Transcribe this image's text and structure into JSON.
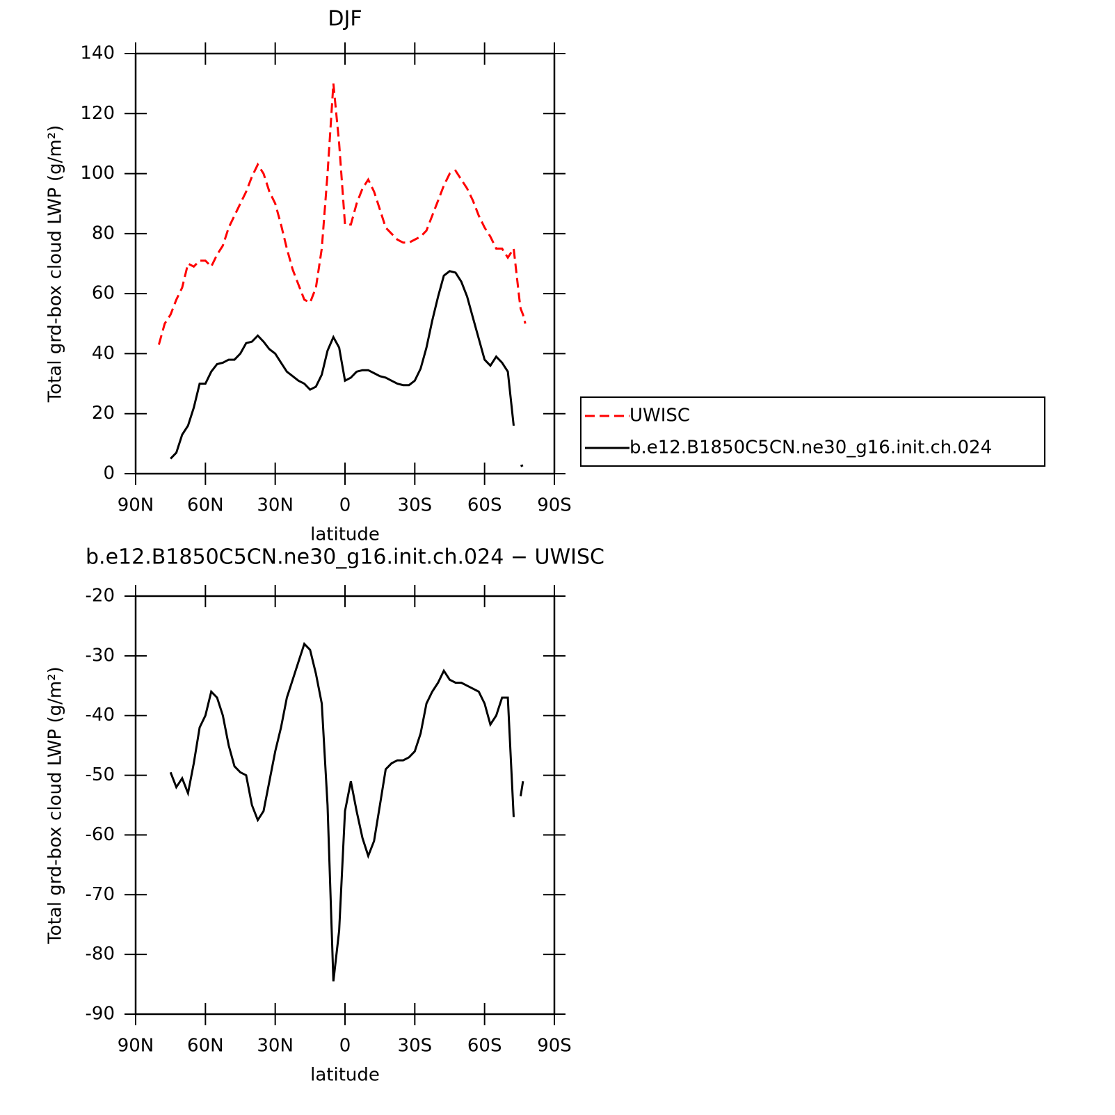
{
  "chart_data": [
    {
      "type": "line",
      "title": "DJF",
      "x_label": "latitude",
      "y_label": "Total grd-box cloud LWP (g/m²)",
      "x": [
        80,
        77.5,
        75,
        72.5,
        70,
        67.5,
        65,
        62.5,
        60,
        57.5,
        55,
        52.5,
        50,
        47.5,
        45,
        42.5,
        40,
        37.5,
        35,
        32.5,
        30,
        27.5,
        25,
        22.5,
        20,
        17.5,
        15,
        12.5,
        10,
        7.5,
        5,
        2.5,
        0,
        -2.5,
        -5,
        -7.5,
        -10,
        -12.5,
        -15,
        -17.5,
        -20,
        -22.5,
        -25,
        -27.5,
        -30,
        -32.5,
        -35,
        -37.5,
        -40,
        -42.5,
        -45,
        -47.5,
        -50,
        -52.5,
        -55,
        -57.5,
        -60,
        -62.5,
        -65,
        -67.5,
        -70,
        -72.5,
        -75,
        -75.5,
        -76.5,
        -77.5
      ],
      "series": [
        {
          "name": "UWISC",
          "color": "#ff0000",
          "dash": true,
          "values": [
            43,
            50,
            53,
            58,
            62,
            70,
            69,
            71,
            71,
            69,
            73,
            76,
            82,
            86,
            90,
            94,
            99,
            103,
            100,
            94,
            90,
            83,
            75,
            68,
            63,
            58,
            57,
            62,
            75,
            100,
            130,
            110,
            83,
            83,
            90,
            95,
            98,
            94,
            88,
            82,
            80,
            78,
            77,
            77,
            78,
            79,
            81,
            86,
            91,
            96,
            100,
            101,
            98,
            95,
            91,
            86,
            82,
            79,
            75,
            75,
            72,
            75,
            58,
            55,
            53,
            50
          ]
        },
        {
          "name": "b.e12.B1850C5CN.ne30_g16.init.ch.024",
          "color": "#000000",
          "dash": false,
          "values": [
            null,
            null,
            5,
            7,
            13,
            16,
            22,
            30,
            30,
            34,
            36.5,
            37,
            38,
            38,
            40,
            43.5,
            44,
            46,
            44,
            41.5,
            40,
            37,
            34,
            32.5,
            31,
            30,
            28,
            29,
            33,
            41,
            45.5,
            42,
            31,
            32,
            34,
            34.5,
            34.5,
            33.5,
            32.5,
            32,
            31,
            30,
            29.5,
            29.5,
            31,
            35,
            42,
            51,
            59,
            66,
            67.5,
            67,
            64,
            59,
            52,
            45,
            38,
            36,
            39,
            37,
            34,
            16,
            null,
            2.5,
            2.8,
            null
          ]
        }
      ],
      "xlim": [
        90,
        -90
      ],
      "xticks": [
        {
          "value": 90,
          "label": "90N"
        },
        {
          "value": 60,
          "label": "60N"
        },
        {
          "value": 30,
          "label": "30N"
        },
        0,
        {
          "value": -30,
          "label": "30S"
        },
        {
          "value": -60,
          "label": "60S"
        },
        {
          "value": -90,
          "label": "90S"
        }
      ],
      "ylim": [
        0,
        140
      ],
      "yticks": [
        0,
        20,
        40,
        60,
        80,
        100,
        120,
        140
      ],
      "legend": "right"
    },
    {
      "type": "line",
      "title": "b.e12.B1850C5CN.ne30_g16.init.ch.024 − UWISC",
      "x_label": "latitude",
      "y_label": "Total grd-box cloud LWP (g/m²)",
      "x": [
        75,
        72.5,
        70,
        67.5,
        65,
        62.5,
        60,
        57.5,
        55,
        52.5,
        50,
        47.5,
        45,
        42.5,
        40,
        37.5,
        35,
        32.5,
        30,
        27.5,
        25,
        22.5,
        20,
        17.5,
        15,
        12.5,
        10,
        7.5,
        5,
        2.5,
        0,
        -2.5,
        -5,
        -7.5,
        -10,
        -12.5,
        -15,
        -17.5,
        -20,
        -22.5,
        -25,
        -27.5,
        -30,
        -32.5,
        -35,
        -37.5,
        -40,
        -42.5,
        -45,
        -47.5,
        -50,
        -52.5,
        -55,
        -57.5,
        -60,
        -62.5,
        -65,
        -67.5,
        -70,
        -72.5,
        -75,
        -75.5,
        -76.5
      ],
      "series": [
        {
          "color": "#000000",
          "dash": false,
          "values": [
            -49.5,
            -52,
            -50.5,
            -53,
            -48,
            -42,
            -40,
            -36,
            -37,
            -40,
            -45,
            -48.5,
            -49.5,
            -50,
            -55,
            -57.5,
            -56,
            -51,
            -46,
            -42,
            -37,
            -34,
            -31,
            -28,
            -29,
            -33,
            -38,
            -55,
            -84.5,
            -76,
            -56,
            -51,
            -56,
            -60.5,
            -63.5,
            -61,
            -55,
            -49,
            -48,
            -47.5,
            -47.5,
            -47,
            -46,
            -43,
            -38,
            -36,
            -34.5,
            -32.5,
            -34,
            -34.5,
            -34.5,
            -35,
            -35.5,
            -36,
            -38,
            -41.5,
            -40,
            -37,
            -37,
            -57,
            null,
            -53.5,
            -51
          ]
        }
      ],
      "xlim": [
        90,
        -90
      ],
      "xticks": [
        {
          "value": 90,
          "label": "90N"
        },
        {
          "value": 60,
          "label": "60N"
        },
        {
          "value": 30,
          "label": "30N"
        },
        0,
        {
          "value": -30,
          "label": "30S"
        },
        {
          "value": -60,
          "label": "60S"
        },
        {
          "value": -90,
          "label": "90S"
        }
      ],
      "ylim": [
        -90,
        -20
      ],
      "yticks": [
        -90,
        -80,
        -70,
        -60,
        -50,
        -40,
        -30,
        -20
      ]
    }
  ]
}
